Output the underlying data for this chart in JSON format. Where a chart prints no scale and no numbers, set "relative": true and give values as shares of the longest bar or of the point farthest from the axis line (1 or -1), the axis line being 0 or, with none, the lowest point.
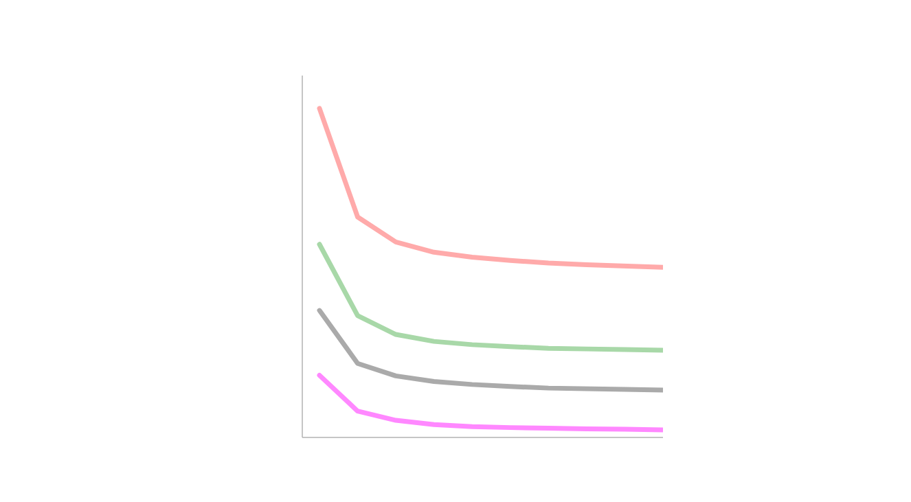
{
  "chart_data": {
    "type": "line",
    "relative": true,
    "marker": "none",
    "line_style": "solid",
    "tick_labels": false,
    "categories": [
      null,
      null,
      null,
      null,
      null,
      null,
      null,
      null,
      null,
      null
    ],
    "series": [
      {
        "color": "#ffaaaa",
        "values": [
          1.0,
          0.67,
          0.594,
          0.563,
          0.548,
          0.538,
          0.53,
          0.525,
          0.521,
          0.517
        ]
      },
      {
        "color": "#a8d8a8",
        "values": [
          0.587,
          0.37,
          0.313,
          0.292,
          0.282,
          0.276,
          0.271,
          0.269,
          0.267,
          0.265
        ]
      },
      {
        "color": "#aaaaaa",
        "values": [
          0.386,
          0.225,
          0.187,
          0.17,
          0.161,
          0.155,
          0.15,
          0.148,
          0.146,
          0.144
        ]
      },
      {
        "color": "#ff88ff",
        "values": [
          0.189,
          0.08,
          0.052,
          0.039,
          0.033,
          0.03,
          0.028,
          0.026,
          0.025,
          0.023
        ]
      }
    ]
  }
}
